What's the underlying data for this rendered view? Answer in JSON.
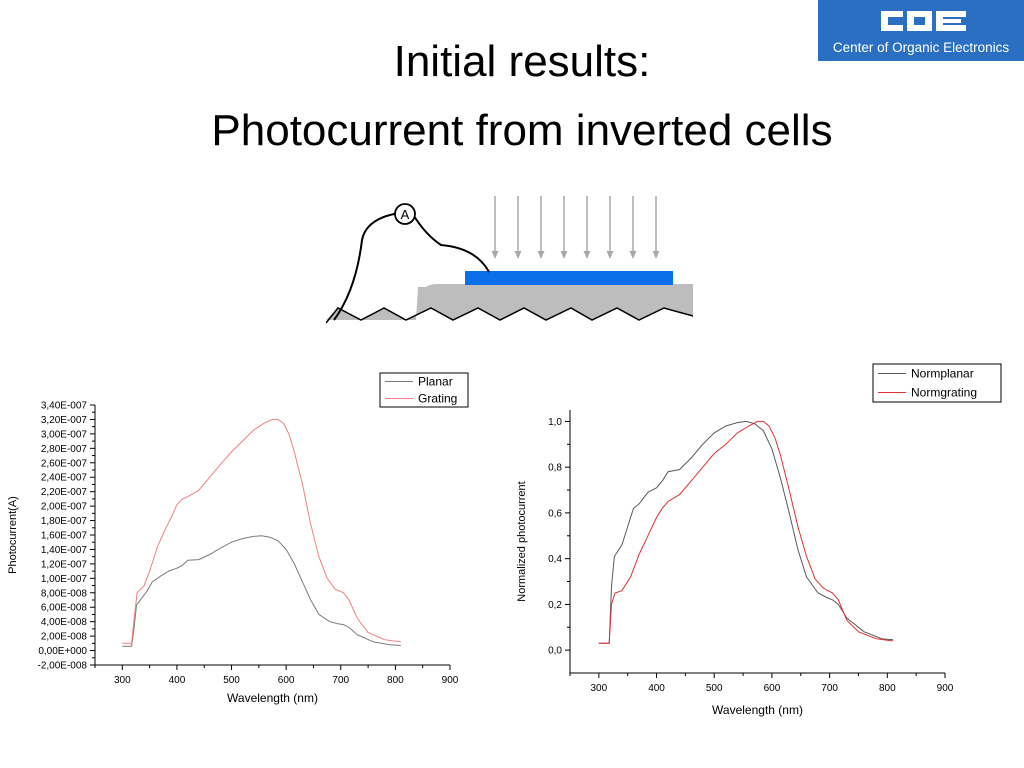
{
  "slide": {
    "title_line1": "Initial results:",
    "title_line2": "Photocurrent from inverted cells"
  },
  "logo": {
    "mark": "COE",
    "subtitle": "Center of Organic Electronics",
    "background": "#2b6fc2"
  },
  "schematic": {
    "ammeter_label": "A",
    "active_layer_color": "#0a6fe8",
    "substrate_color": "#bdbdbd",
    "light_arrow_count": 8
  },
  "chart_data": [
    {
      "type": "line",
      "title": "",
      "xlabel": "Wavelength (nm)",
      "ylabel": "Photocurrent(A)",
      "xlim": [
        250,
        900
      ],
      "ylim": [
        -2e-08,
        3.4e-07
      ],
      "x_ticks": [
        300,
        400,
        500,
        600,
        700,
        800,
        900
      ],
      "x_tick_labels": [
        "300",
        "400",
        "500",
        "600",
        "700",
        "800",
        "900"
      ],
      "y_ticks": [
        -2e-08,
        0,
        2e-08,
        4e-08,
        6e-08,
        8e-08,
        1e-07,
        1.2e-07,
        1.4e-07,
        1.6e-07,
        1.8e-07,
        2e-07,
        2.2e-07,
        2.4e-07,
        2.6e-07,
        2.8e-07,
        3e-07,
        3.2e-07,
        3.4e-07
      ],
      "y_tick_labels": [
        "-2,00E-008",
        "0,00E+000",
        "2,00E-008",
        "4,00E-008",
        "6,00E-008",
        "8,00E-008",
        "1,00E-007",
        "1,20E-007",
        "1,40E-007",
        "1,60E-007",
        "1,80E-007",
        "2,00E-007",
        "2,20E-007",
        "2,40E-007",
        "2,60E-007",
        "2,80E-007",
        "3,00E-007",
        "3,20E-007",
        "3,40E-007"
      ],
      "grid": false,
      "legend": "top-right",
      "series": [
        {
          "name": "Planar",
          "color": "#7a7a7a",
          "x": [
            300,
            317,
            321,
            326,
            335,
            345,
            355,
            370,
            385,
            400,
            410,
            420,
            440,
            460,
            480,
            500,
            520,
            540,
            555,
            570,
            585,
            600,
            615,
            630,
            645,
            660,
            680,
            695,
            705,
            715,
            730,
            760,
            790,
            810
          ],
          "y": [
            6e-09,
            6e-09,
            2.8e-08,
            6.3e-08,
            7.2e-08,
            8.2e-08,
            9.5e-08,
            1.03e-07,
            1.1e-07,
            1.14e-07,
            1.18e-07,
            1.25e-07,
            1.26e-07,
            1.33e-07,
            1.42e-07,
            1.5e-07,
            1.55e-07,
            1.58e-07,
            1.59e-07,
            1.57e-07,
            1.52e-07,
            1.4e-07,
            1.2e-07,
            9.5e-08,
            7e-08,
            5e-08,
            4e-08,
            3.7e-08,
            3.6e-08,
            3.2e-08,
            2.2e-08,
            1.2e-08,
            8e-09,
            7e-09
          ]
        },
        {
          "name": "Grating",
          "color": "#f08080",
          "x": [
            300,
            317,
            321,
            327,
            340,
            350,
            365,
            380,
            390,
            400,
            410,
            420,
            440,
            460,
            480,
            500,
            520,
            540,
            560,
            575,
            585,
            595,
            605,
            615,
            630,
            645,
            660,
            675,
            690,
            705,
            715,
            730,
            750,
            780,
            810
          ],
          "y": [
            1e-08,
            1e-08,
            4e-08,
            8e-08,
            9e-08,
            1.1e-07,
            1.45e-07,
            1.7e-07,
            1.85e-07,
            2.02e-07,
            2.1e-07,
            2.13e-07,
            2.22e-07,
            2.4e-07,
            2.58e-07,
            2.75e-07,
            2.9e-07,
            3.05e-07,
            3.15e-07,
            3.2e-07,
            3.2e-07,
            3.15e-07,
            3e-07,
            2.75e-07,
            2.3e-07,
            1.75e-07,
            1.3e-07,
            1e-07,
            8.5e-08,
            8e-08,
            7e-08,
            4.5e-08,
            2.5e-08,
            1.5e-08,
            1.2e-08
          ]
        }
      ]
    },
    {
      "type": "line",
      "title": "",
      "xlabel": "Wavelength (nm)",
      "ylabel": "Normalized photocurrent",
      "xlim": [
        250,
        900
      ],
      "ylim": [
        -0.1,
        1.05
      ],
      "x_ticks": [
        300,
        400,
        500,
        600,
        700,
        800,
        900
      ],
      "x_tick_labels": [
        "300",
        "400",
        "500",
        "600",
        "700",
        "800",
        "900"
      ],
      "y_ticks": [
        0.0,
        0.2,
        0.4,
        0.6,
        0.8,
        1.0
      ],
      "y_tick_labels": [
        "0,0",
        "0,2",
        "0,4",
        "0,6",
        "0,8",
        "1,0"
      ],
      "grid": false,
      "legend": "top-right",
      "series": [
        {
          "name": "Normplanar",
          "color": "#5a5a5a",
          "x": [
            300,
            318,
            322,
            327,
            340,
            350,
            360,
            370,
            385,
            400,
            410,
            420,
            440,
            460,
            480,
            500,
            520,
            540,
            555,
            570,
            585,
            600,
            615,
            630,
            645,
            660,
            680,
            695,
            705,
            715,
            730,
            760,
            790,
            810
          ],
          "y": [
            0.03,
            0.03,
            0.28,
            0.41,
            0.46,
            0.54,
            0.62,
            0.64,
            0.69,
            0.71,
            0.74,
            0.78,
            0.79,
            0.84,
            0.9,
            0.95,
            0.98,
            0.995,
            1.0,
            0.99,
            0.96,
            0.88,
            0.75,
            0.6,
            0.44,
            0.32,
            0.25,
            0.23,
            0.22,
            0.2,
            0.14,
            0.08,
            0.05,
            0.045
          ]
        },
        {
          "name": "Normgrating",
          "color": "#e03030",
          "x": [
            300,
            318,
            322,
            328,
            340,
            355,
            370,
            385,
            400,
            410,
            420,
            440,
            460,
            480,
            500,
            520,
            540,
            560,
            575,
            585,
            595,
            605,
            615,
            630,
            645,
            660,
            675,
            690,
            705,
            715,
            730,
            750,
            780,
            810
          ],
          "y": [
            0.03,
            0.03,
            0.2,
            0.25,
            0.26,
            0.32,
            0.42,
            0.5,
            0.58,
            0.62,
            0.65,
            0.68,
            0.74,
            0.8,
            0.86,
            0.9,
            0.95,
            0.98,
            1.0,
            1.0,
            0.98,
            0.93,
            0.85,
            0.7,
            0.54,
            0.41,
            0.31,
            0.27,
            0.25,
            0.22,
            0.13,
            0.08,
            0.05,
            0.04
          ]
        }
      ]
    }
  ]
}
